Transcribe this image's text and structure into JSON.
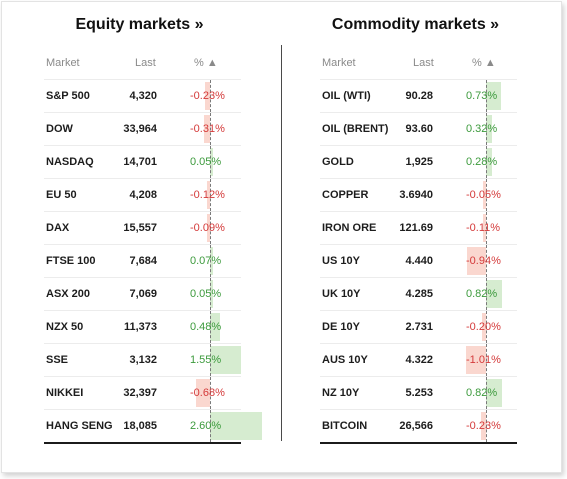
{
  "equity": {
    "title": "Equity markets »",
    "headers": {
      "market": "Market",
      "last": "Last",
      "pct": "% ▲"
    },
    "rows": [
      {
        "market": "S&P 500",
        "last": "4,320",
        "pct": "-0.23%",
        "change": -0.23
      },
      {
        "market": "DOW",
        "last": "33,964",
        "pct": "-0.31%",
        "change": -0.31
      },
      {
        "market": "NASDAQ",
        "last": "14,701",
        "pct": "0.05%",
        "change": 0.05
      },
      {
        "market": "EU 50",
        "last": "4,208",
        "pct": "-0.12%",
        "change": -0.12
      },
      {
        "market": "DAX",
        "last": "15,557",
        "pct": "-0.09%",
        "change": -0.09
      },
      {
        "market": "FTSE 100",
        "last": "7,684",
        "pct": "0.07%",
        "change": 0.07
      },
      {
        "market": "ASX 200",
        "last": "7,069",
        "pct": "0.05%",
        "change": 0.05
      },
      {
        "market": "NZX 50",
        "last": "11,373",
        "pct": "0.48%",
        "change": 0.48
      },
      {
        "market": "SSE",
        "last": "3,132",
        "pct": "1.55%",
        "change": 1.55
      },
      {
        "market": "NIKKEI",
        "last": "32,397",
        "pct": "-0.68%",
        "change": -0.68
      },
      {
        "market": "HANG SENG",
        "last": "18,085",
        "pct": "2.60%",
        "change": 2.6
      }
    ]
  },
  "commodity": {
    "title": "Commodity markets »",
    "headers": {
      "market": "Market",
      "last": "Last",
      "pct": "% ▲"
    },
    "rows": [
      {
        "market": "OIL (WTI)",
        "last": "90.28",
        "pct": "0.73%",
        "change": 0.73
      },
      {
        "market": "OIL (BRENT)",
        "last": "93.60",
        "pct": "0.32%",
        "change": 0.32
      },
      {
        "market": "GOLD",
        "last": "1,925",
        "pct": "0.28%",
        "change": 0.28
      },
      {
        "market": "COPPER",
        "last": "3.6940",
        "pct": "-0.05%",
        "change": -0.05
      },
      {
        "market": "IRON ORE",
        "last": "121.69",
        "pct": "-0.11%",
        "change": -0.11
      },
      {
        "market": "US 10Y",
        "last": "4.440",
        "pct": "-0.94%",
        "change": -0.94
      },
      {
        "market": "UK 10Y",
        "last": "4.285",
        "pct": "0.82%",
        "change": 0.82
      },
      {
        "market": "DE 10Y",
        "last": "2.731",
        "pct": "-0.20%",
        "change": -0.2
      },
      {
        "market": "AUS 10Y",
        "last": "4.322",
        "pct": "-1.01%",
        "change": -1.01
      },
      {
        "market": "NZ 10Y",
        "last": "5.253",
        "pct": "0.82%",
        "change": 0.82
      },
      {
        "market": "BITCOIN",
        "last": "26,566",
        "pct": "-0.23%",
        "change": -0.23
      }
    ]
  },
  "colors": {
    "positive_text": "#3c9a3c",
    "negative_text": "#d43a3a",
    "positive_bar": "#d6ecd0",
    "negative_bar": "#fad7cf"
  }
}
